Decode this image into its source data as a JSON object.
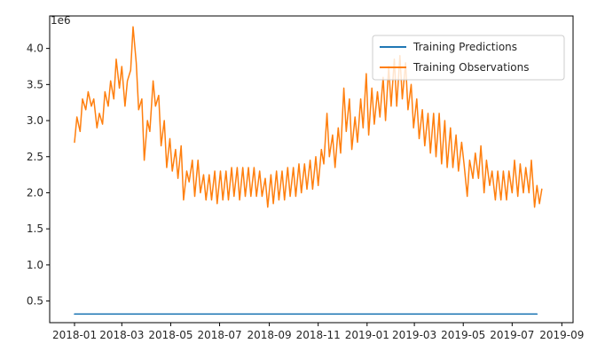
{
  "chart_data": {
    "type": "line",
    "y_offset_label": "1e6",
    "y_ticks": [
      0.5,
      1.0,
      1.5,
      2.0,
      2.5,
      3.0,
      3.5,
      4.0
    ],
    "y_tick_labels": [
      "0.5",
      "1.0",
      "1.5",
      "2.0",
      "2.5",
      "3.0",
      "3.5",
      "4.0"
    ],
    "ylim": [
      0.2,
      4.45
    ],
    "x_ticks": [
      "2018-01",
      "2018-03",
      "2018-05",
      "2018-07",
      "2018-09",
      "2018-11",
      "2019-01",
      "2019-03",
      "2019-05",
      "2019-07",
      "2019-09"
    ],
    "xlim": [
      "2017-12-01",
      "2019-09-15"
    ],
    "legend_position": "upper right",
    "grid": false,
    "series": [
      {
        "name": "Training Predictions",
        "color": "#1f77b4",
        "points": [
          [
            "2018-01-01",
            0.32
          ],
          [
            "2019-08-01",
            0.32
          ]
        ]
      },
      {
        "name": "Training Observations",
        "color": "#ff7f0e",
        "points": [
          [
            "2018-01-01",
            2.7
          ],
          [
            "2018-01-04",
            3.05
          ],
          [
            "2018-01-08",
            2.85
          ],
          [
            "2018-01-11",
            3.3
          ],
          [
            "2018-01-15",
            3.15
          ],
          [
            "2018-01-18",
            3.4
          ],
          [
            "2018-01-22",
            3.2
          ],
          [
            "2018-01-25",
            3.3
          ],
          [
            "2018-01-29",
            2.9
          ],
          [
            "2018-02-01",
            3.1
          ],
          [
            "2018-02-05",
            2.95
          ],
          [
            "2018-02-08",
            3.4
          ],
          [
            "2018-02-12",
            3.2
          ],
          [
            "2018-02-15",
            3.55
          ],
          [
            "2018-02-19",
            3.3
          ],
          [
            "2018-02-22",
            3.85
          ],
          [
            "2018-02-26",
            3.45
          ],
          [
            "2018-03-01",
            3.75
          ],
          [
            "2018-03-05",
            3.2
          ],
          [
            "2018-03-08",
            3.55
          ],
          [
            "2018-03-12",
            3.7
          ],
          [
            "2018-03-15",
            4.3
          ],
          [
            "2018-03-19",
            3.8
          ],
          [
            "2018-03-22",
            3.15
          ],
          [
            "2018-03-26",
            3.3
          ],
          [
            "2018-03-29",
            2.45
          ],
          [
            "2018-04-02",
            3.0
          ],
          [
            "2018-04-05",
            2.85
          ],
          [
            "2018-04-09",
            3.55
          ],
          [
            "2018-04-12",
            3.2
          ],
          [
            "2018-04-16",
            3.35
          ],
          [
            "2018-04-19",
            2.65
          ],
          [
            "2018-04-23",
            3.0
          ],
          [
            "2018-04-26",
            2.35
          ],
          [
            "2018-04-30",
            2.75
          ],
          [
            "2018-05-03",
            2.3
          ],
          [
            "2018-05-07",
            2.6
          ],
          [
            "2018-05-10",
            2.2
          ],
          [
            "2018-05-14",
            2.65
          ],
          [
            "2018-05-17",
            1.9
          ],
          [
            "2018-05-21",
            2.3
          ],
          [
            "2018-05-24",
            2.15
          ],
          [
            "2018-05-28",
            2.45
          ],
          [
            "2018-05-31",
            1.95
          ],
          [
            "2018-06-04",
            2.45
          ],
          [
            "2018-06-07",
            2.0
          ],
          [
            "2018-06-11",
            2.25
          ],
          [
            "2018-06-14",
            1.9
          ],
          [
            "2018-06-18",
            2.25
          ],
          [
            "2018-06-21",
            1.9
          ],
          [
            "2018-06-25",
            2.3
          ],
          [
            "2018-06-28",
            1.85
          ],
          [
            "2018-07-02",
            2.3
          ],
          [
            "2018-07-05",
            1.9
          ],
          [
            "2018-07-09",
            2.3
          ],
          [
            "2018-07-12",
            1.9
          ],
          [
            "2018-07-16",
            2.35
          ],
          [
            "2018-07-19",
            1.95
          ],
          [
            "2018-07-23",
            2.35
          ],
          [
            "2018-07-26",
            1.9
          ],
          [
            "2018-07-30",
            2.35
          ],
          [
            "2018-08-02",
            1.95
          ],
          [
            "2018-08-06",
            2.35
          ],
          [
            "2018-08-09",
            1.95
          ],
          [
            "2018-08-13",
            2.35
          ],
          [
            "2018-08-16",
            1.95
          ],
          [
            "2018-08-20",
            2.3
          ],
          [
            "2018-08-23",
            1.95
          ],
          [
            "2018-08-27",
            2.2
          ],
          [
            "2018-08-30",
            1.8
          ],
          [
            "2018-09-03",
            2.25
          ],
          [
            "2018-09-06",
            1.85
          ],
          [
            "2018-09-10",
            2.3
          ],
          [
            "2018-09-13",
            1.9
          ],
          [
            "2018-09-17",
            2.3
          ],
          [
            "2018-09-20",
            1.9
          ],
          [
            "2018-09-24",
            2.35
          ],
          [
            "2018-09-27",
            1.95
          ],
          [
            "2018-10-01",
            2.35
          ],
          [
            "2018-10-04",
            1.95
          ],
          [
            "2018-10-08",
            2.4
          ],
          [
            "2018-10-11",
            2.0
          ],
          [
            "2018-10-15",
            2.4
          ],
          [
            "2018-10-18",
            2.05
          ],
          [
            "2018-10-22",
            2.45
          ],
          [
            "2018-10-25",
            2.05
          ],
          [
            "2018-10-29",
            2.5
          ],
          [
            "2018-11-01",
            2.1
          ],
          [
            "2018-11-05",
            2.6
          ],
          [
            "2018-11-08",
            2.4
          ],
          [
            "2018-11-12",
            3.1
          ],
          [
            "2018-11-15",
            2.5
          ],
          [
            "2018-11-19",
            2.8
          ],
          [
            "2018-11-22",
            2.35
          ],
          [
            "2018-11-26",
            2.9
          ],
          [
            "2018-11-29",
            2.55
          ],
          [
            "2018-12-03",
            3.45
          ],
          [
            "2018-12-06",
            2.85
          ],
          [
            "2018-12-10",
            3.3
          ],
          [
            "2018-12-13",
            2.6
          ],
          [
            "2018-12-17",
            3.05
          ],
          [
            "2018-12-20",
            2.7
          ],
          [
            "2018-12-24",
            3.3
          ],
          [
            "2018-12-27",
            2.9
          ],
          [
            "2018-12-31",
            3.65
          ],
          [
            "2019-01-03",
            2.8
          ],
          [
            "2019-01-07",
            3.45
          ],
          [
            "2019-01-10",
            2.95
          ],
          [
            "2019-01-14",
            3.4
          ],
          [
            "2019-01-17",
            3.05
          ],
          [
            "2019-01-21",
            3.6
          ],
          [
            "2019-01-24",
            3.0
          ],
          [
            "2019-01-28",
            3.75
          ],
          [
            "2019-01-31",
            3.2
          ],
          [
            "2019-02-04",
            3.85
          ],
          [
            "2019-02-07",
            3.2
          ],
          [
            "2019-02-11",
            3.9
          ],
          [
            "2019-02-14",
            3.3
          ],
          [
            "2019-02-18",
            3.8
          ],
          [
            "2019-02-21",
            3.15
          ],
          [
            "2019-02-25",
            3.5
          ],
          [
            "2019-02-28",
            2.9
          ],
          [
            "2019-03-04",
            3.3
          ],
          [
            "2019-03-07",
            2.75
          ],
          [
            "2019-03-11",
            3.15
          ],
          [
            "2019-03-14",
            2.65
          ],
          [
            "2019-03-18",
            3.1
          ],
          [
            "2019-03-21",
            2.55
          ],
          [
            "2019-03-25",
            3.1
          ],
          [
            "2019-03-28",
            2.5
          ],
          [
            "2019-04-01",
            3.1
          ],
          [
            "2019-04-04",
            2.4
          ],
          [
            "2019-04-08",
            3.0
          ],
          [
            "2019-04-11",
            2.35
          ],
          [
            "2019-04-15",
            2.9
          ],
          [
            "2019-04-18",
            2.35
          ],
          [
            "2019-04-22",
            2.8
          ],
          [
            "2019-04-25",
            2.3
          ],
          [
            "2019-04-29",
            2.7
          ],
          [
            "2019-05-02",
            2.4
          ],
          [
            "2019-05-06",
            1.95
          ],
          [
            "2019-05-09",
            2.45
          ],
          [
            "2019-05-13",
            2.2
          ],
          [
            "2019-05-16",
            2.55
          ],
          [
            "2019-05-20",
            2.2
          ],
          [
            "2019-05-23",
            2.65
          ],
          [
            "2019-05-27",
            2.0
          ],
          [
            "2019-05-30",
            2.45
          ],
          [
            "2019-06-03",
            2.1
          ],
          [
            "2019-06-06",
            2.3
          ],
          [
            "2019-06-10",
            1.9
          ],
          [
            "2019-06-13",
            2.3
          ],
          [
            "2019-06-17",
            1.9
          ],
          [
            "2019-06-20",
            2.3
          ],
          [
            "2019-06-24",
            1.9
          ],
          [
            "2019-06-27",
            2.3
          ],
          [
            "2019-07-01",
            2.0
          ],
          [
            "2019-07-04",
            2.45
          ],
          [
            "2019-07-08",
            1.95
          ],
          [
            "2019-07-11",
            2.4
          ],
          [
            "2019-07-15",
            2.0
          ],
          [
            "2019-07-18",
            2.35
          ],
          [
            "2019-07-22",
            2.0
          ],
          [
            "2019-07-25",
            2.45
          ],
          [
            "2019-07-29",
            1.8
          ],
          [
            "2019-08-01",
            2.1
          ],
          [
            "2019-08-04",
            1.85
          ],
          [
            "2019-08-07",
            2.05
          ]
        ]
      }
    ]
  }
}
